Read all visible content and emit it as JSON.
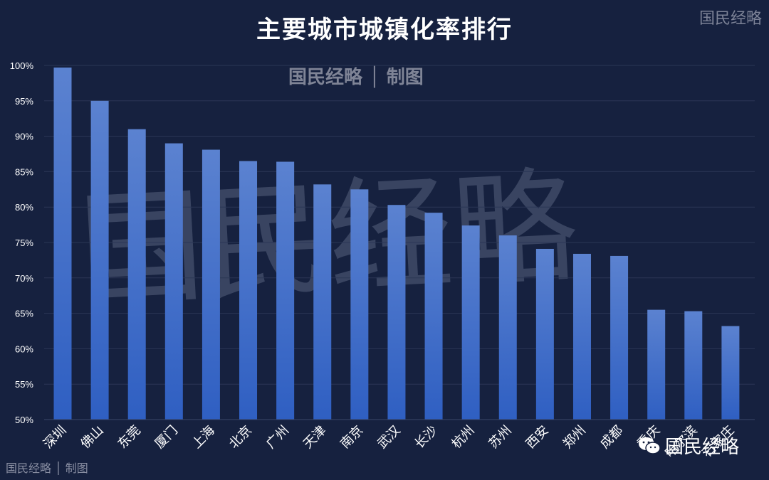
{
  "chart_data": {
    "type": "bar",
    "title": "主要城市城镇化率排行",
    "categories": [
      "深圳",
      "佛山",
      "东莞",
      "厦门",
      "上海",
      "北京",
      "广州",
      "天津",
      "南京",
      "武汉",
      "长沙",
      "杭州",
      "苏州",
      "西安",
      "郑州",
      "成都",
      "重庆",
      "哈尔滨",
      "石家庄"
    ],
    "values": [
      99.7,
      95.0,
      91.0,
      89.0,
      88.1,
      86.5,
      86.4,
      83.2,
      82.5,
      80.3,
      79.2,
      77.4,
      76.0,
      74.1,
      73.4,
      73.1,
      65.5,
      65.3,
      63.2
    ],
    "ylim": [
      50,
      100
    ],
    "yticks": [
      "50%",
      "55%",
      "60%",
      "65%",
      "70%",
      "75%",
      "80%",
      "85%",
      "90%",
      "95%",
      "100%"
    ],
    "grid": true,
    "bar_color_top": "#5b82d0",
    "bar_color_bottom": "#2f5fc2"
  },
  "watermarks": {
    "top_right": "国民经略",
    "center": "国民经略 │ 制图",
    "big": "国民经略",
    "bottom_left": "国民经略 │ 制图",
    "wechat_label": "国民经略"
  },
  "colors": {
    "background": "#16213f",
    "grid": "#2b3656",
    "axis_text": "#ffffff"
  }
}
